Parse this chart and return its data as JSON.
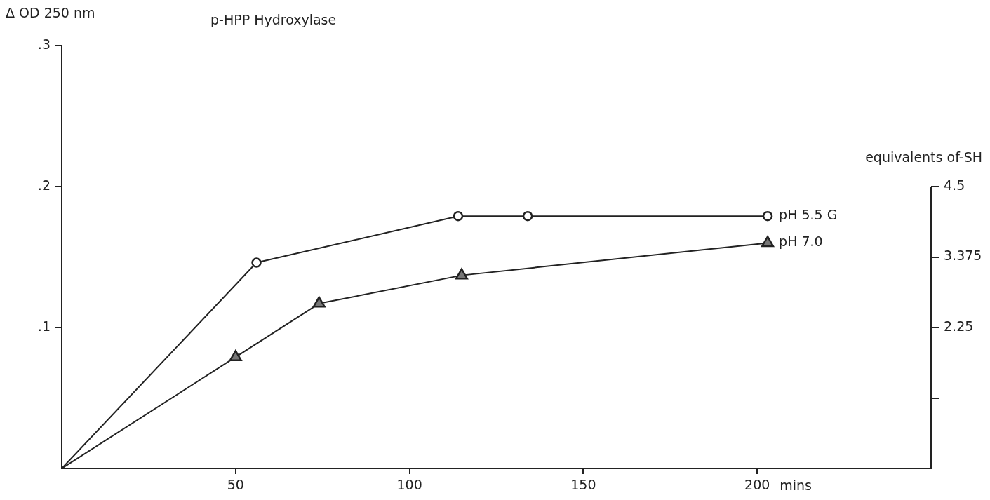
{
  "chart_data": {
    "type": "line",
    "title": "p-HPP Hydroxylase",
    "xlabel": "mins",
    "ylabel": "Δ OD 250 nm",
    "y2label": "equivalents of-SH",
    "xlim": [
      0,
      250
    ],
    "xticks": [
      50,
      100,
      150,
      200
    ],
    "ylim": [
      0,
      0.3
    ],
    "yticks": [
      {
        "value": 0.1,
        "label": ".1"
      },
      {
        "value": 0.2,
        "label": ".2"
      },
      {
        "value": 0.3,
        "label": ".3"
      }
    ],
    "y2lim": [
      0,
      6.75
    ],
    "y2ticks": [
      {
        "value": 1.125,
        "label": null
      },
      2.25,
      3.375,
      4.5
    ],
    "grid": false,
    "legend": false,
    "series": [
      {
        "name": "pH 5.5 G",
        "color": "#222222",
        "marker": "circle",
        "x": [
          0,
          56,
          114,
          134,
          203
        ],
        "values": [
          0,
          0.146,
          0.179,
          0.179,
          0.179
        ]
      },
      {
        "name": "pH 7.0",
        "color": "#222222",
        "marker": "triangle",
        "x": [
          0,
          50,
          74,
          115,
          203
        ],
        "values": [
          0,
          0.079,
          0.117,
          0.137,
          0.16
        ]
      }
    ]
  }
}
